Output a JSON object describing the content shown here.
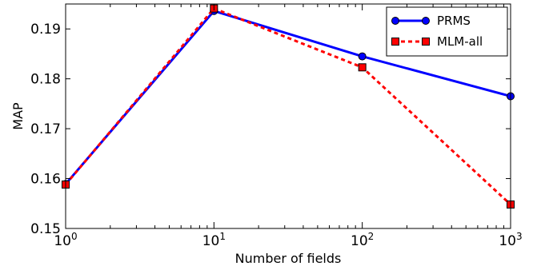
{
  "chart_data": {
    "type": "line",
    "xlabel": "Number of fields",
    "ylabel": "MAP",
    "xscale": "log",
    "xlim": [
      1,
      1000
    ],
    "ylim": [
      0.15,
      0.195
    ],
    "x": [
      1,
      10,
      100,
      1000
    ],
    "x_ticks": [
      {
        "value": 1,
        "base": "10",
        "exp": "0"
      },
      {
        "value": 10,
        "base": "10",
        "exp": "1"
      },
      {
        "value": 100,
        "base": "10",
        "exp": "2"
      },
      {
        "value": 1000,
        "base": "10",
        "exp": "3"
      }
    ],
    "y_ticks": [
      {
        "value": 0.15,
        "label": "0.15"
      },
      {
        "value": 0.16,
        "label": "0.16"
      },
      {
        "value": 0.17,
        "label": "0.17"
      },
      {
        "value": 0.18,
        "label": "0.18"
      },
      {
        "value": 0.19,
        "label": "0.19"
      }
    ],
    "series": [
      {
        "name": "PRMS",
        "values": [
          0.1589,
          0.1936,
          0.1845,
          0.1765
        ],
        "color": "#0000ff",
        "marker": "circle",
        "line_style": "solid",
        "marker_fill": "#0000ff"
      },
      {
        "name": "MLM-all",
        "values": [
          0.1588,
          0.1941,
          0.1823,
          0.1548
        ],
        "color": "#ff0000",
        "marker": "square",
        "line_style": "dashed",
        "marker_fill": "#ff0000"
      }
    ],
    "legend_position": "top-right",
    "grid": false
  }
}
